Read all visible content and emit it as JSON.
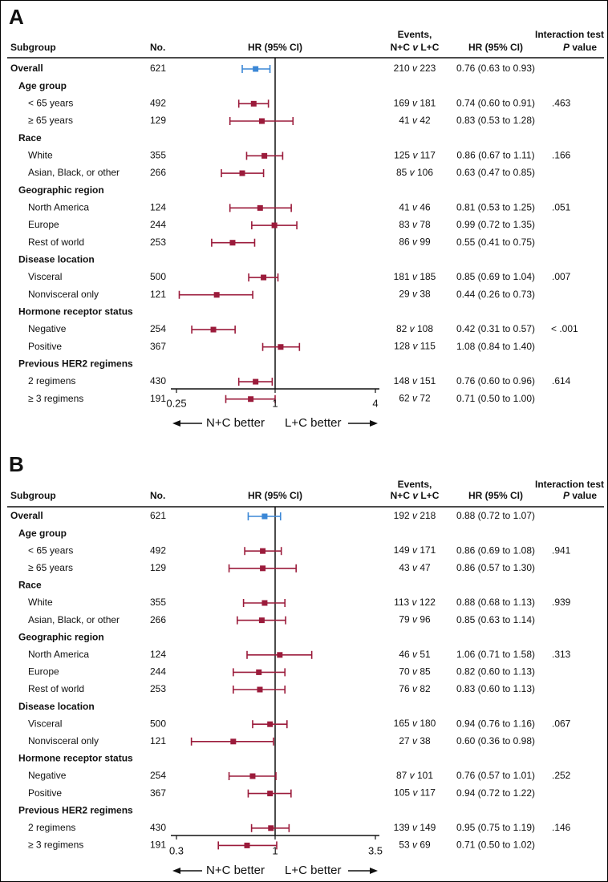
{
  "colors": {
    "overall": "#3b87d6",
    "subgroup": "#9b1b3b",
    "text": "#111111",
    "highlight": "#3b87d6"
  },
  "headers": {
    "subgroup": "Subgroup",
    "no": "No.",
    "plot": "HR (95% CI)",
    "events_line1": "Events,",
    "events_line2_a": "N+C ",
    "events_line2_v": "v",
    "events_line2_b": " L+C",
    "hr": "HR (95% CI)",
    "p_line1": "Interaction test",
    "p_line2_p": "P",
    "p_line2_rest": " value"
  },
  "events_sep": "v",
  "arrows": {
    "left": "N+C better",
    "right": "L+C better"
  },
  "chart_data": [
    {
      "type": "forest",
      "panel": "A",
      "xscale": "log",
      "xlim": [
        0.25,
        4
      ],
      "xticks": [
        "0.25",
        "1",
        "4"
      ],
      "xtick_values": [
        0.25,
        1,
        4
      ],
      "reference": 1,
      "rows": [
        {
          "label": "Overall",
          "kind": "overall",
          "n": "621",
          "hr": 0.76,
          "lo": 0.63,
          "hi": 0.93,
          "e1": "210",
          "e2": "223",
          "hr_text": "0.76 (0.63 to 0.93)",
          "p": ""
        },
        {
          "label": "Age group",
          "kind": "group"
        },
        {
          "label": "< 65 years",
          "kind": "sub",
          "n": "492",
          "hr": 0.74,
          "lo": 0.6,
          "hi": 0.91,
          "e1": "169",
          "e2": "181",
          "hr_text": "0.74 (0.60 to 0.91)",
          "p": ".463"
        },
        {
          "label": "≥ 65 years",
          "kind": "sub",
          "n": "129",
          "hr": 0.83,
          "lo": 0.53,
          "hi": 1.28,
          "e1": "41",
          "e2": "42",
          "hr_text": "0.83 (0.53 to 1.28)",
          "p": ""
        },
        {
          "label": "Race",
          "kind": "group"
        },
        {
          "label": "White",
          "kind": "sub",
          "n": "355",
          "hr": 0.86,
          "lo": 0.67,
          "hi": 1.11,
          "e1": "125",
          "e2": "117",
          "hr_text": "0.86 (0.67 to 1.11)",
          "p": ".166"
        },
        {
          "label": "Asian, Black, or other",
          "kind": "sub",
          "n": "266",
          "hr": 0.63,
          "lo": 0.47,
          "hi": 0.85,
          "e1": "85",
          "e2": "106",
          "hr_text": "0.63 (0.47 to 0.85)",
          "p": ""
        },
        {
          "label": "Geographic region",
          "kind": "group"
        },
        {
          "label": "North America",
          "kind": "sub",
          "n": "124",
          "hr": 0.81,
          "lo": 0.53,
          "hi": 1.25,
          "e1": "41",
          "e2": "46",
          "hr_text": "0.81 (0.53 to 1.25)",
          "p": ".051"
        },
        {
          "label": "Europe",
          "kind": "sub",
          "n": "244",
          "hr": 0.99,
          "lo": 0.72,
          "hi": 1.35,
          "e1": "83",
          "e2": "78",
          "hr_text": "0.99 (0.72 to 1.35)",
          "p": ""
        },
        {
          "label": "Rest of world",
          "kind": "sub",
          "n": "253",
          "hr": 0.55,
          "lo": 0.41,
          "hi": 0.75,
          "e1": "86",
          "e2": "99",
          "hr_text": "0.55 (0.41 to 0.75)",
          "p": ""
        },
        {
          "label": "Disease location",
          "kind": "group"
        },
        {
          "label": "Visceral",
          "kind": "sub",
          "n": "500",
          "hr": 0.85,
          "lo": 0.69,
          "hi": 1.04,
          "e1": "181",
          "e2": "185",
          "hr_text": "0.85 (0.69 to 1.04)",
          "p": ".007",
          "p_highlight": true
        },
        {
          "label": "Nonvisceral only",
          "kind": "sub",
          "n": "121",
          "hr": 0.44,
          "lo": 0.26,
          "hi": 0.73,
          "e1": "29",
          "e2": "38",
          "hr_text": "0.44 (0.26 to 0.73)",
          "p": ""
        },
        {
          "label": "Hormone receptor status",
          "kind": "group"
        },
        {
          "label": "Negative",
          "kind": "sub",
          "n": "254",
          "hr": 0.42,
          "lo": 0.31,
          "hi": 0.57,
          "e1": "82",
          "e2": "108",
          "hr_text": "0.42 (0.31 to 0.57)",
          "p": "< .001",
          "p_highlight": true
        },
        {
          "label": "Positive",
          "kind": "sub",
          "n": "367",
          "hr": 1.08,
          "lo": 0.84,
          "hi": 1.4,
          "e1": "128",
          "e2": "115",
          "hr_text": "1.08 (0.84 to 1.40)",
          "p": ""
        },
        {
          "label": "Previous HER2 regimens",
          "kind": "group"
        },
        {
          "label": "2 regimens",
          "kind": "sub",
          "n": "430",
          "hr": 0.76,
          "lo": 0.6,
          "hi": 0.96,
          "e1": "148",
          "e2": "151",
          "hr_text": "0.76 (0.60 to 0.96)",
          "p": ".614"
        },
        {
          "label": "≥ 3 regimens",
          "kind": "sub",
          "n": "191",
          "hr": 0.71,
          "lo": 0.5,
          "hi": 1.0,
          "e1": "62",
          "e2": "72",
          "hr_text": "0.71 (0.50 to 1.00)",
          "p": ""
        }
      ]
    },
    {
      "type": "forest",
      "panel": "B",
      "xscale": "log",
      "xlim": [
        0.3,
        3.5
      ],
      "xticks": [
        "0.3",
        "1",
        "3.5"
      ],
      "xtick_values": [
        0.3,
        1,
        3.5
      ],
      "reference": 1,
      "rows": [
        {
          "label": "Overall",
          "kind": "overall",
          "n": "621",
          "hr": 0.88,
          "lo": 0.72,
          "hi": 1.07,
          "e1": "192",
          "e2": "218",
          "hr_text": "0.88 (0.72 to 1.07)",
          "p": ""
        },
        {
          "label": "Age group",
          "kind": "group"
        },
        {
          "label": "< 65 years",
          "kind": "sub",
          "n": "492",
          "hr": 0.86,
          "lo": 0.69,
          "hi": 1.08,
          "e1": "149",
          "e2": "171",
          "hr_text": "0.86 (0.69 to 1.08)",
          "p": ".941"
        },
        {
          "label": "≥ 65 years",
          "kind": "sub",
          "n": "129",
          "hr": 0.86,
          "lo": 0.57,
          "hi": 1.3,
          "e1": "43",
          "e2": "47",
          "hr_text": "0.86 (0.57 to 1.30)",
          "p": ""
        },
        {
          "label": "Race",
          "kind": "group"
        },
        {
          "label": "White",
          "kind": "sub",
          "n": "355",
          "hr": 0.88,
          "lo": 0.68,
          "hi": 1.13,
          "e1": "113",
          "e2": "122",
          "hr_text": "0.88 (0.68 to 1.13)",
          "p": ".939"
        },
        {
          "label": "Asian, Black, or other",
          "kind": "sub",
          "n": "266",
          "hr": 0.85,
          "lo": 0.63,
          "hi": 1.14,
          "e1": "79",
          "e2": "96",
          "hr_text": "0.85 (0.63 to 1.14)",
          "p": ""
        },
        {
          "label": "Geographic region",
          "kind": "group"
        },
        {
          "label": "North America",
          "kind": "sub",
          "n": "124",
          "hr": 1.06,
          "lo": 0.71,
          "hi": 1.58,
          "e1": "46",
          "e2": "51",
          "hr_text": "1.06 (0.71 to 1.58)",
          "p": ".313"
        },
        {
          "label": "Europe",
          "kind": "sub",
          "n": "244",
          "hr": 0.82,
          "lo": 0.6,
          "hi": 1.13,
          "e1": "70",
          "e2": "85",
          "hr_text": "0.82 (0.60 to 1.13)",
          "p": ""
        },
        {
          "label": "Rest of world",
          "kind": "sub",
          "n": "253",
          "hr": 0.83,
          "lo": 0.6,
          "hi": 1.13,
          "e1": "76",
          "e2": "82",
          "hr_text": "0.83 (0.60 to 1.13)",
          "p": ""
        },
        {
          "label": "Disease location",
          "kind": "group"
        },
        {
          "label": "Visceral",
          "kind": "sub",
          "n": "500",
          "hr": 0.94,
          "lo": 0.76,
          "hi": 1.16,
          "e1": "165",
          "e2": "180",
          "hr_text": "0.94 (0.76 to 1.16)",
          "p": ".067"
        },
        {
          "label": "Nonvisceral only",
          "kind": "sub",
          "n": "121",
          "hr": 0.6,
          "lo": 0.36,
          "hi": 0.98,
          "e1": "27",
          "e2": "38",
          "hr_text": "0.60 (0.36 to 0.98)",
          "p": ""
        },
        {
          "label": "Hormone receptor status",
          "kind": "group"
        },
        {
          "label": "Negative",
          "kind": "sub",
          "n": "254",
          "hr": 0.76,
          "lo": 0.57,
          "hi": 1.01,
          "e1": "87",
          "e2": "101",
          "hr_text": "0.76 (0.57 to 1.01)",
          "p": ".252"
        },
        {
          "label": "Positive",
          "kind": "sub",
          "n": "367",
          "hr": 0.94,
          "lo": 0.72,
          "hi": 1.22,
          "e1": "105",
          "e2": "117",
          "hr_text": "0.94 (0.72 to 1.22)",
          "p": ""
        },
        {
          "label": "Previous HER2 regimens",
          "kind": "group"
        },
        {
          "label": "2 regimens",
          "kind": "sub",
          "n": "430",
          "hr": 0.95,
          "lo": 0.75,
          "hi": 1.19,
          "e1": "139",
          "e2": "149",
          "hr_text": "0.95 (0.75 to 1.19)",
          "p": ".146"
        },
        {
          "label": "≥ 3 regimens",
          "kind": "sub",
          "n": "191",
          "hr": 0.71,
          "lo": 0.5,
          "hi": 1.02,
          "e1": "53",
          "e2": "69",
          "hr_text": "0.71 (0.50 to 1.02)",
          "p": ""
        }
      ]
    }
  ]
}
